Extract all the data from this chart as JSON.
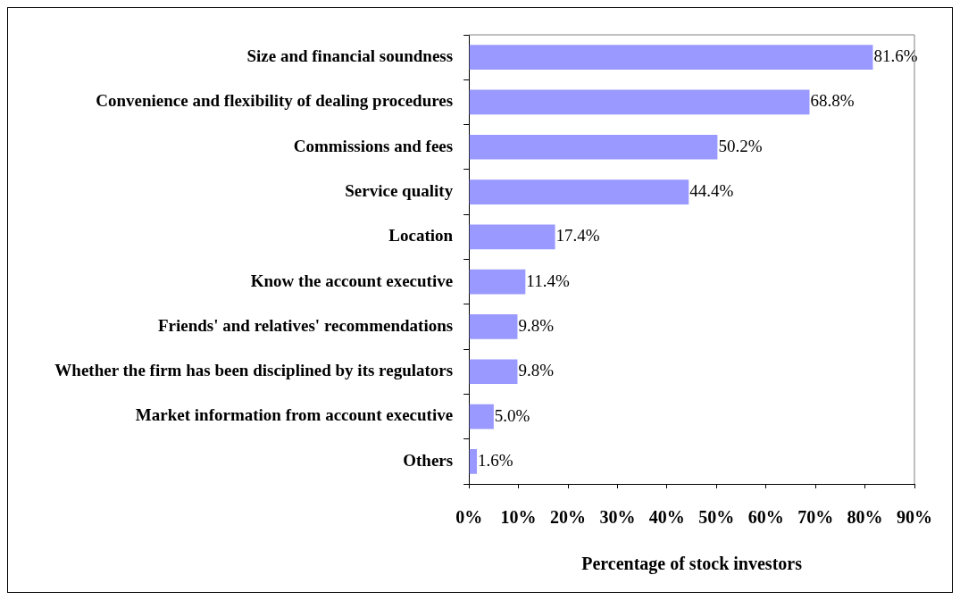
{
  "chart_data": {
    "type": "bar",
    "orientation": "horizontal",
    "xlabel": "Percentage of stock investors",
    "categories": [
      "Size and financial soundness",
      "Convenience and flexibility of dealing procedures",
      "Commissions and fees",
      "Service quality",
      "Location",
      "Know the account executive",
      "Friends' and relatives' recommendations",
      "Whether the firm has been disciplined by its regulators",
      "Market information from account executive",
      "Others"
    ],
    "values": [
      81.6,
      68.8,
      50.2,
      44.4,
      17.4,
      11.4,
      9.8,
      9.8,
      5.0,
      1.6
    ],
    "value_labels": [
      "81.6%",
      "68.8%",
      "50.2%",
      "44.4%",
      "17.4%",
      "11.4%",
      "9.8%",
      "9.8%",
      "5.0%",
      "1.6%"
    ],
    "color": "#9999ff",
    "xlim": [
      0,
      90
    ],
    "xticks": [
      {
        "value": 0,
        "label": "0%"
      },
      {
        "value": 10,
        "label": "10%"
      },
      {
        "value": 20,
        "label": "20%"
      },
      {
        "value": 30,
        "label": "30%"
      },
      {
        "value": 40,
        "label": "40%"
      },
      {
        "value": 50,
        "label": "50%"
      },
      {
        "value": 60,
        "label": "60%"
      },
      {
        "value": 70,
        "label": "70%"
      },
      {
        "value": 80,
        "label": "80%"
      },
      {
        "value": 90,
        "label": "90%"
      }
    ],
    "grid": false,
    "legend": false
  }
}
